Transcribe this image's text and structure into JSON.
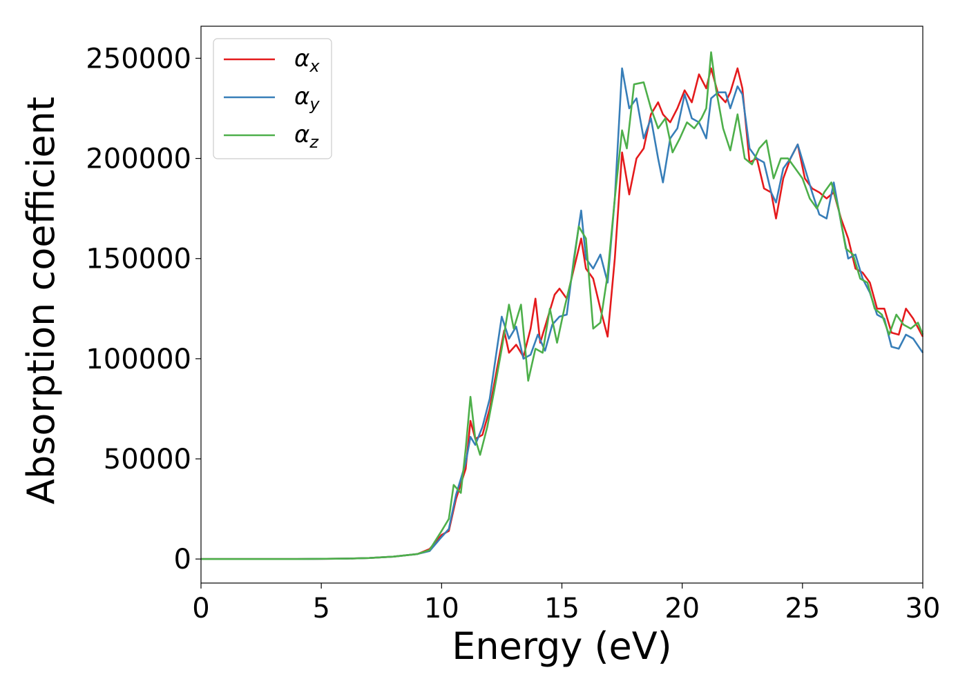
{
  "chart_data": {
    "type": "line",
    "xlabel": "Energy (eV)",
    "ylabel": "Absorption coefficient",
    "xlim": [
      0,
      30
    ],
    "ylim": [
      -12000,
      266000
    ],
    "xticks": [
      0,
      5,
      10,
      15,
      20,
      25,
      30
    ],
    "yticks": [
      0,
      50000,
      100000,
      150000,
      200000,
      250000
    ],
    "xtick_labels": [
      "0",
      "5",
      "10",
      "15",
      "20",
      "25",
      "30"
    ],
    "ytick_labels": [
      "0",
      "50000",
      "100000",
      "150000",
      "200000",
      "250000"
    ],
    "grid": false,
    "legend_position": "top-left",
    "series": [
      {
        "name": "αx",
        "legend_base": "α",
        "legend_sub": "x",
        "color": "#e41a1c",
        "points": [
          [
            0,
            0
          ],
          [
            2,
            0
          ],
          [
            4,
            0
          ],
          [
            6,
            200
          ],
          [
            7,
            500
          ],
          [
            8,
            1200
          ],
          [
            9,
            2500
          ],
          [
            9.5,
            5000
          ],
          [
            10,
            12000
          ],
          [
            10.3,
            14000
          ],
          [
            10.6,
            30000
          ],
          [
            11,
            45000
          ],
          [
            11.2,
            69000
          ],
          [
            11.4,
            60000
          ],
          [
            11.7,
            62000
          ],
          [
            12,
            75000
          ],
          [
            12.3,
            95000
          ],
          [
            12.6,
            114000
          ],
          [
            12.8,
            103000
          ],
          [
            13.1,
            107000
          ],
          [
            13.4,
            101000
          ],
          [
            13.7,
            115000
          ],
          [
            13.9,
            130000
          ],
          [
            14.1,
            108000
          ],
          [
            14.4,
            120000
          ],
          [
            14.7,
            132000
          ],
          [
            14.9,
            135000
          ],
          [
            15.2,
            130000
          ],
          [
            15.5,
            145000
          ],
          [
            15.8,
            160000
          ],
          [
            16,
            145000
          ],
          [
            16.3,
            140000
          ],
          [
            16.6,
            125000
          ],
          [
            16.9,
            111000
          ],
          [
            17.2,
            150000
          ],
          [
            17.5,
            203000
          ],
          [
            17.8,
            182000
          ],
          [
            18.1,
            200000
          ],
          [
            18.4,
            205000
          ],
          [
            18.7,
            222000
          ],
          [
            19,
            228000
          ],
          [
            19.2,
            222000
          ],
          [
            19.5,
            218000
          ],
          [
            19.8,
            225000
          ],
          [
            20.1,
            234000
          ],
          [
            20.4,
            228000
          ],
          [
            20.7,
            242000
          ],
          [
            21,
            235000
          ],
          [
            21.2,
            245000
          ],
          [
            21.5,
            232000
          ],
          [
            21.8,
            228000
          ],
          [
            22,
            233000
          ],
          [
            22.3,
            245000
          ],
          [
            22.5,
            235000
          ],
          [
            22.8,
            198000
          ],
          [
            23.1,
            200000
          ],
          [
            23.4,
            185000
          ],
          [
            23.7,
            183000
          ],
          [
            23.9,
            170000
          ],
          [
            24.2,
            190000
          ],
          [
            24.5,
            200000
          ],
          [
            24.8,
            207000
          ],
          [
            25.1,
            190000
          ],
          [
            25.4,
            185000
          ],
          [
            25.7,
            183000
          ],
          [
            26,
            180000
          ],
          [
            26.3,
            183000
          ],
          [
            26.6,
            170000
          ],
          [
            26.9,
            160000
          ],
          [
            27.2,
            145000
          ],
          [
            27.5,
            143000
          ],
          [
            27.8,
            138000
          ],
          [
            28.1,
            125000
          ],
          [
            28.4,
            125000
          ],
          [
            28.7,
            113000
          ],
          [
            29,
            112000
          ],
          [
            29.3,
            125000
          ],
          [
            29.6,
            120000
          ],
          [
            30,
            111000
          ]
        ]
      },
      {
        "name": "αy",
        "legend_base": "α",
        "legend_sub": "y",
        "color": "#377eb8",
        "points": [
          [
            0,
            0
          ],
          [
            2,
            0
          ],
          [
            4,
            0
          ],
          [
            6,
            200
          ],
          [
            7,
            500
          ],
          [
            8,
            1200
          ],
          [
            9,
            2500
          ],
          [
            9.5,
            4000
          ],
          [
            10,
            11000
          ],
          [
            10.3,
            15000
          ],
          [
            10.6,
            32000
          ],
          [
            11,
            48000
          ],
          [
            11.2,
            61000
          ],
          [
            11.4,
            57000
          ],
          [
            11.7,
            66000
          ],
          [
            12,
            80000
          ],
          [
            12.3,
            105000
          ],
          [
            12.5,
            121000
          ],
          [
            12.8,
            110000
          ],
          [
            13.1,
            116000
          ],
          [
            13.4,
            100000
          ],
          [
            13.7,
            102000
          ],
          [
            14,
            112000
          ],
          [
            14.3,
            104000
          ],
          [
            14.6,
            117000
          ],
          [
            14.9,
            121000
          ],
          [
            15.2,
            122000
          ],
          [
            15.5,
            150000
          ],
          [
            15.8,
            174000
          ],
          [
            16,
            150000
          ],
          [
            16.3,
            145000
          ],
          [
            16.6,
            152000
          ],
          [
            16.9,
            138000
          ],
          [
            17.2,
            180000
          ],
          [
            17.5,
            245000
          ],
          [
            17.8,
            225000
          ],
          [
            18.1,
            230000
          ],
          [
            18.4,
            210000
          ],
          [
            18.7,
            220000
          ],
          [
            19,
            200000
          ],
          [
            19.2,
            188000
          ],
          [
            19.5,
            210000
          ],
          [
            19.8,
            215000
          ],
          [
            20.1,
            232000
          ],
          [
            20.4,
            220000
          ],
          [
            20.7,
            218000
          ],
          [
            21,
            210000
          ],
          [
            21.2,
            230000
          ],
          [
            21.5,
            233000
          ],
          [
            21.8,
            233000
          ],
          [
            22,
            225000
          ],
          [
            22.3,
            236000
          ],
          [
            22.5,
            232000
          ],
          [
            22.8,
            205000
          ],
          [
            23.1,
            200000
          ],
          [
            23.4,
            198000
          ],
          [
            23.7,
            183000
          ],
          [
            23.9,
            178000
          ],
          [
            24.2,
            195000
          ],
          [
            24.5,
            200000
          ],
          [
            24.8,
            207000
          ],
          [
            25.1,
            195000
          ],
          [
            25.4,
            183000
          ],
          [
            25.7,
            172000
          ],
          [
            26,
            170000
          ],
          [
            26.3,
            188000
          ],
          [
            26.6,
            168000
          ],
          [
            26.9,
            150000
          ],
          [
            27.2,
            152000
          ],
          [
            27.5,
            140000
          ],
          [
            27.8,
            133000
          ],
          [
            28.1,
            122000
          ],
          [
            28.4,
            120000
          ],
          [
            28.7,
            106000
          ],
          [
            29,
            105000
          ],
          [
            29.3,
            112000
          ],
          [
            29.6,
            110000
          ],
          [
            30,
            103000
          ]
        ]
      },
      {
        "name": "αz",
        "legend_base": "α",
        "legend_sub": "z",
        "color": "#4daf4a",
        "points": [
          [
            0,
            0
          ],
          [
            2,
            0
          ],
          [
            4,
            0
          ],
          [
            6,
            200
          ],
          [
            7,
            500
          ],
          [
            8,
            1200
          ],
          [
            9,
            2500
          ],
          [
            9.5,
            4500
          ],
          [
            10,
            14000
          ],
          [
            10.3,
            20000
          ],
          [
            10.5,
            37000
          ],
          [
            10.8,
            33000
          ],
          [
            11,
            55000
          ],
          [
            11.2,
            81000
          ],
          [
            11.4,
            60000
          ],
          [
            11.6,
            52000
          ],
          [
            11.9,
            66000
          ],
          [
            12.2,
            85000
          ],
          [
            12.5,
            105000
          ],
          [
            12.8,
            127000
          ],
          [
            13,
            115000
          ],
          [
            13.3,
            127000
          ],
          [
            13.6,
            89000
          ],
          [
            13.9,
            105000
          ],
          [
            14.2,
            103000
          ],
          [
            14.5,
            125000
          ],
          [
            14.8,
            108000
          ],
          [
            15.1,
            125000
          ],
          [
            15.4,
            140000
          ],
          [
            15.7,
            166000
          ],
          [
            16,
            160000
          ],
          [
            16.3,
            115000
          ],
          [
            16.6,
            118000
          ],
          [
            16.9,
            142000
          ],
          [
            17.2,
            180000
          ],
          [
            17.5,
            214000
          ],
          [
            17.7,
            205000
          ],
          [
            18,
            237000
          ],
          [
            18.4,
            238000
          ],
          [
            18.7,
            225000
          ],
          [
            19,
            215000
          ],
          [
            19.3,
            220000
          ],
          [
            19.6,
            203000
          ],
          [
            19.9,
            210000
          ],
          [
            20.2,
            218000
          ],
          [
            20.5,
            215000
          ],
          [
            20.8,
            220000
          ],
          [
            21,
            225000
          ],
          [
            21.2,
            253000
          ],
          [
            21.4,
            235000
          ],
          [
            21.7,
            215000
          ],
          [
            22,
            204000
          ],
          [
            22.3,
            222000
          ],
          [
            22.6,
            200000
          ],
          [
            22.9,
            197000
          ],
          [
            23.2,
            205000
          ],
          [
            23.5,
            209000
          ],
          [
            23.8,
            190000
          ],
          [
            24.1,
            200000
          ],
          [
            24.4,
            200000
          ],
          [
            24.7,
            195000
          ],
          [
            25,
            190000
          ],
          [
            25.3,
            180000
          ],
          [
            25.6,
            175000
          ],
          [
            25.9,
            183000
          ],
          [
            26.2,
            188000
          ],
          [
            26.5,
            175000
          ],
          [
            26.8,
            155000
          ],
          [
            27.1,
            152000
          ],
          [
            27.4,
            140000
          ],
          [
            27.7,
            138000
          ],
          [
            28,
            125000
          ],
          [
            28.3,
            122000
          ],
          [
            28.6,
            112000
          ],
          [
            28.9,
            122000
          ],
          [
            29.2,
            117000
          ],
          [
            29.5,
            115000
          ],
          [
            29.8,
            118000
          ],
          [
            30,
            112000
          ]
        ]
      }
    ]
  }
}
